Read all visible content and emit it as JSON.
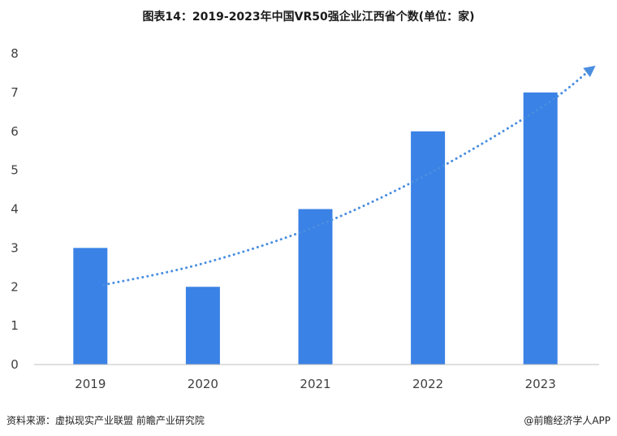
{
  "chart_data": {
    "type": "bar",
    "title": "图表14：2019-2023年中国VR50强企业江西省个数(单位：家)",
    "xlabel": "",
    "ylabel": "",
    "categories": [
      "2019",
      "2020",
      "2021",
      "2022",
      "2023"
    ],
    "values": [
      3,
      2,
      4,
      6,
      7
    ],
    "ylim": [
      0,
      8
    ],
    "yticks": [
      "0",
      "1",
      "2",
      "3",
      "4",
      "5",
      "6",
      "7",
      "8"
    ],
    "grid": false,
    "trendline": {
      "style": "dotted",
      "has_arrow": true,
      "points": [
        [
          0.12,
          2.05
        ],
        [
          1.0,
          2.6
        ],
        [
          2.0,
          3.55
        ],
        [
          3.0,
          4.9
        ],
        [
          4.0,
          6.6
        ],
        [
          4.45,
          7.6
        ]
      ]
    },
    "colors": {
      "bar": "#3a82e6",
      "trend": "#4a8ee0",
      "axis": "#bfbfbf",
      "tick_text": "#404040"
    }
  },
  "footer": {
    "source": "资料来源：虚拟现实产业联盟 前瞻产业研究院",
    "brand": "@前瞻经济学人APP"
  }
}
